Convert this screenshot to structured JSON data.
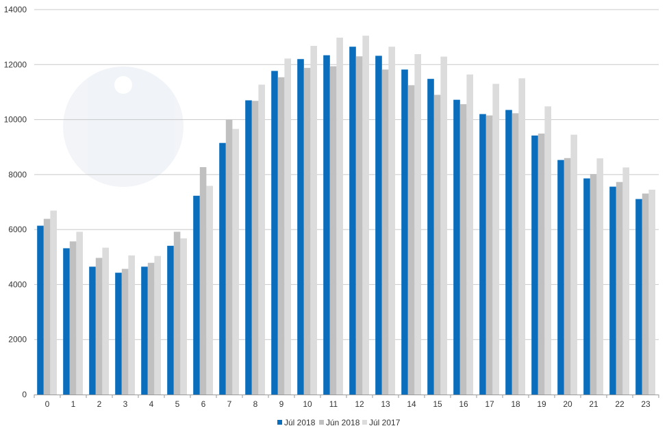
{
  "chart_data": {
    "type": "bar",
    "categories": [
      "0",
      "1",
      "2",
      "3",
      "4",
      "5",
      "6",
      "7",
      "8",
      "9",
      "10",
      "11",
      "12",
      "13",
      "14",
      "15",
      "16",
      "17",
      "18",
      "19",
      "20",
      "21",
      "22",
      "23"
    ],
    "series": [
      {
        "name": "Júl 2018",
        "color": "#0a6ebd",
        "values": [
          6140,
          5320,
          4650,
          4430,
          4650,
          5410,
          7230,
          9150,
          10700,
          11770,
          12200,
          12340,
          12650,
          12320,
          11820,
          11480,
          10720,
          10200,
          10350,
          9420,
          8530,
          7860,
          7560,
          7110
        ]
      },
      {
        "name": "Jún 2018",
        "color": "#c0c0c0",
        "values": [
          6390,
          5570,
          4970,
          4570,
          4790,
          5920,
          8270,
          9990,
          10680,
          11540,
          11880,
          11940,
          12300,
          11820,
          11250,
          10900,
          10560,
          10150,
          10230,
          9490,
          8600,
          8020,
          7730,
          7310
        ]
      },
      {
        "name": "Júl 2017",
        "color": "#dcdcdc",
        "values": [
          6690,
          5920,
          5340,
          5060,
          5040,
          5680,
          7590,
          9660,
          11270,
          12220,
          12680,
          12980,
          13050,
          12650,
          12380,
          12290,
          11640,
          11300,
          11500,
          10480,
          9450,
          8590,
          8260,
          7450
        ]
      }
    ],
    "y_ticks": [
      "0",
      "2000",
      "4000",
      "6000",
      "8000",
      "10000",
      "12000",
      "14000"
    ],
    "ylim": [
      0,
      14000
    ],
    "grid": true,
    "legend_position": "bottom-center",
    "title": "",
    "xlabel": "",
    "ylabel": ""
  }
}
